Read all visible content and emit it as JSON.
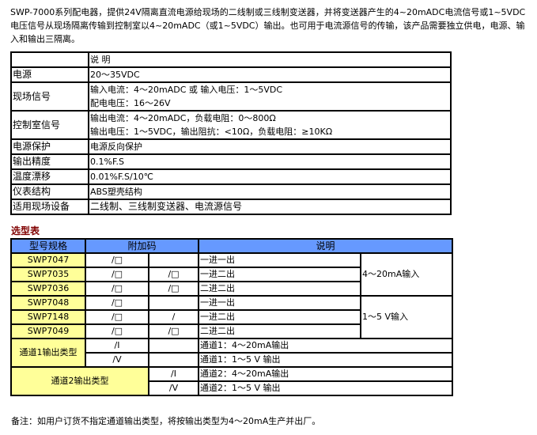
{
  "intro": "SWP-7000系列配电器，提供24V隔离直流电源给现场的二线制或三线制变送器，并将变送器产生的4~20mADC电流信号或1~5VDC电压信号从现场隔离传输到控制室以4~20mADC（或1~5VDC）输出。也可用于电流源信号的传输，该产品需要独立供电，电源、输入和输出三隔离。",
  "spec_table": {
    "header": [
      "",
      "说 明"
    ],
    "rows": [
      {
        "label": "电源",
        "lines": [
          "20～35VDC"
        ]
      },
      {
        "label": "现场信号",
        "lines": [
          "输入电流：4～20mADC 或 输入电压：1～5VDC",
          "配电电压：16～26V"
        ]
      },
      {
        "label": "控制室信号",
        "lines": [
          "输出电流：4～20mADC，负载电阻：0～800Ω",
          "输出电压：1～5VDC，输出阻抗：<10Ω，负载电阻：≥10KΩ"
        ]
      },
      {
        "label": "电源保护",
        "lines": [
          "电源反向保护"
        ]
      },
      {
        "label": "输出精度",
        "lines": [
          "0.1%F.S"
        ]
      },
      {
        "label": "温度漂移",
        "lines": [
          "0.01%F.S/10℃"
        ]
      },
      {
        "label": "仪表结构",
        "lines": [
          "ABS塑壳结构"
        ]
      },
      {
        "label": "适用现场设备",
        "lines": [
          "二线制、三线制变送器、电流源信号"
        ]
      }
    ]
  },
  "selection_title": "选型表",
  "selection_table": {
    "header": [
      "型号规格",
      "附加码",
      "说明"
    ],
    "models": [
      {
        "model": "SWP7047",
        "code1": "/□",
        "code2": "",
        "desc": "一进一出"
      },
      {
        "model": "SWP7035",
        "code1": "/□",
        "code2": "/□",
        "desc": "一进二出"
      },
      {
        "model": "SWP7036",
        "code1": "/□",
        "code2": "/□",
        "desc": "二进二出"
      },
      {
        "model": "SWP7048",
        "code1": "/□",
        "code2": "",
        "desc": "一进一出"
      },
      {
        "model": "SWP7148",
        "code1": "/□",
        "code2": "/",
        "desc": "一进二出"
      },
      {
        "model": "SWP7049",
        "code1": "/□",
        "code2": "/□",
        "desc": "二进二出"
      }
    ],
    "groups": [
      "4～20mA输入",
      "1～5 V输入"
    ],
    "ch1": {
      "label": "通道1输出类型",
      "options": [
        {
          "code": "/I",
          "desc": "通道1：4～20mA输出"
        },
        {
          "code": "/V",
          "desc": "通道1：1～5 V 输出"
        }
      ]
    },
    "ch2": {
      "label": "通道2输出类型",
      "options": [
        {
          "code": "/I",
          "desc": "通道2：4～20mA输出"
        },
        {
          "code": "/V",
          "desc": "通道2：1～5 V 输出"
        }
      ]
    },
    "colors": {
      "header": "#6699ff",
      "model_cell": "#ffff99",
      "title": "#800000"
    }
  },
  "note": "备注：如用户订货不指定通道输出类型，将按输出类型为4～20mA生产并出厂。"
}
